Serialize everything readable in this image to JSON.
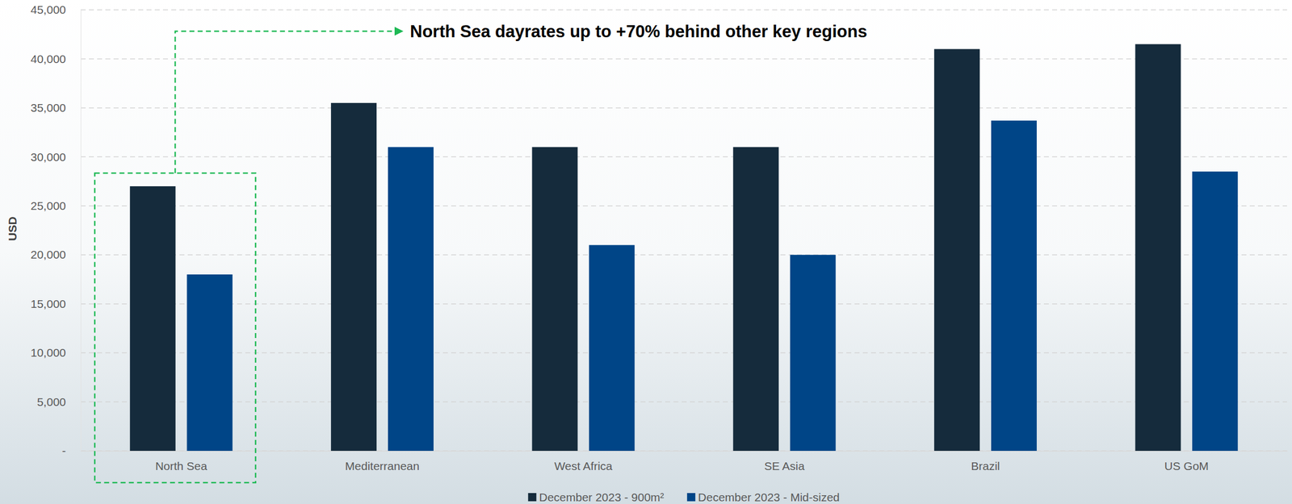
{
  "chart_data": {
    "type": "bar",
    "annotation": "North Sea dayrates up to +70% behind other key regions",
    "y_label": "USD",
    "categories": [
      "North Sea",
      "Mediterranean",
      "West Africa",
      "SE Asia",
      "Brazil",
      "US GoM"
    ],
    "series": [
      {
        "name": "December 2023 - 900m²",
        "color": "#152b3c",
        "values": [
          27000,
          35500,
          31000,
          31000,
          41000,
          41500
        ]
      },
      {
        "name": "December 2023 - Mid-sized",
        "color": "#004587",
        "values": [
          18000,
          31000,
          21000,
          20000,
          33700,
          28500
        ]
      }
    ],
    "ylim": [
      0,
      45000
    ],
    "yticks": [
      {
        "value": 0,
        "label": "-"
      },
      {
        "value": 5000,
        "label": "5,000"
      },
      {
        "value": 10000,
        "label": "10,000"
      },
      {
        "value": 15000,
        "label": "15,000"
      },
      {
        "value": 20000,
        "label": "20,000"
      },
      {
        "value": 25000,
        "label": "25,000"
      },
      {
        "value": 30000,
        "label": "30,000"
      },
      {
        "value": 35000,
        "label": "35,000"
      },
      {
        "value": 40000,
        "label": "40,000"
      },
      {
        "value": 45000,
        "label": "45,000"
      }
    ],
    "grid": true,
    "legend": "bottom"
  }
}
